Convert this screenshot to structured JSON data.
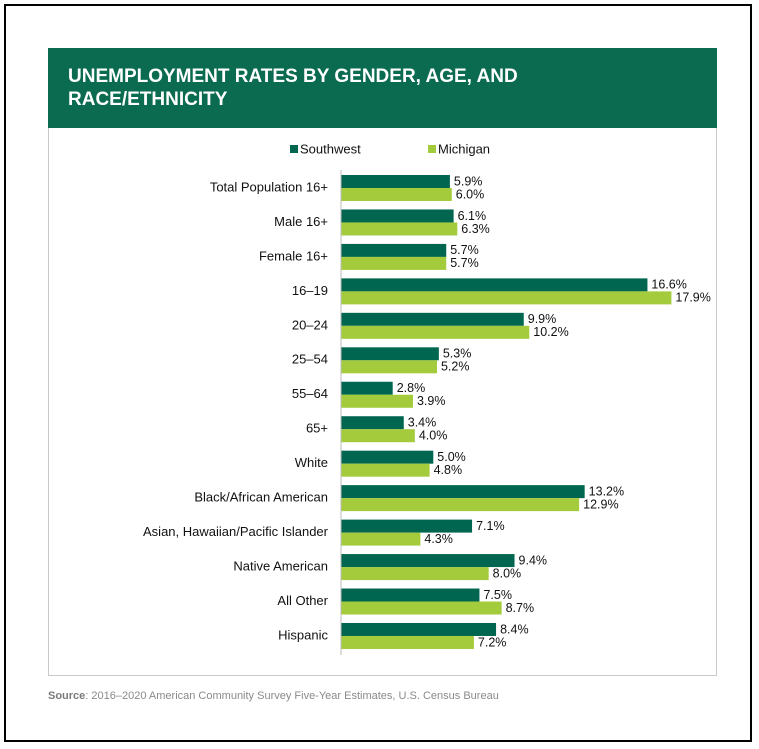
{
  "chart_data": {
    "type": "bar",
    "orientation": "horizontal",
    "title": "UNEMPLOYMENT RATES BY GENDER, AGE, AND RACE/ETHNICITY",
    "categories": [
      "Total Population 16+",
      "Male 16+",
      "Female 16+",
      "16–19",
      "20–24",
      "25–54",
      "55–64",
      "65+",
      "White",
      "Black/African American",
      "Asian, Hawaiian/Pacific Islander",
      "Native American",
      "All Other",
      "Hispanic"
    ],
    "series": [
      {
        "name": "Southwest",
        "color": "#00664f",
        "values": [
          5.9,
          6.1,
          5.7,
          16.6,
          9.9,
          5.3,
          2.8,
          3.4,
          5.0,
          13.2,
          7.1,
          9.4,
          7.5,
          8.4
        ],
        "value_labels": [
          "5.9%",
          "6.1%",
          "5.7%",
          "16.6%",
          "9.9%",
          "5.3%",
          "2.8%",
          "3.4%",
          "5.0%",
          "13.2%",
          "7.1%",
          "9.4%",
          "7.5%",
          "8.4%"
        ]
      },
      {
        "name": "Michigan",
        "color": "#a3cb3c",
        "values": [
          6.0,
          6.3,
          5.7,
          17.9,
          10.2,
          5.2,
          3.9,
          4.0,
          4.8,
          12.9,
          4.3,
          8.0,
          8.7,
          7.2
        ],
        "value_labels": [
          "6.0%",
          "6.3%",
          "5.7%",
          "17.9%",
          "10.2%",
          "5.2%",
          "3.9%",
          "4.0%",
          "4.8%",
          "12.9%",
          "4.3%",
          "8.0%",
          "8.7%",
          "7.2%"
        ]
      }
    ],
    "legend": "top",
    "source_label": "Source",
    "source_text": ": 2016–2020 American Community Survey Five-Year Estimates, U.S. Census Bureau"
  }
}
